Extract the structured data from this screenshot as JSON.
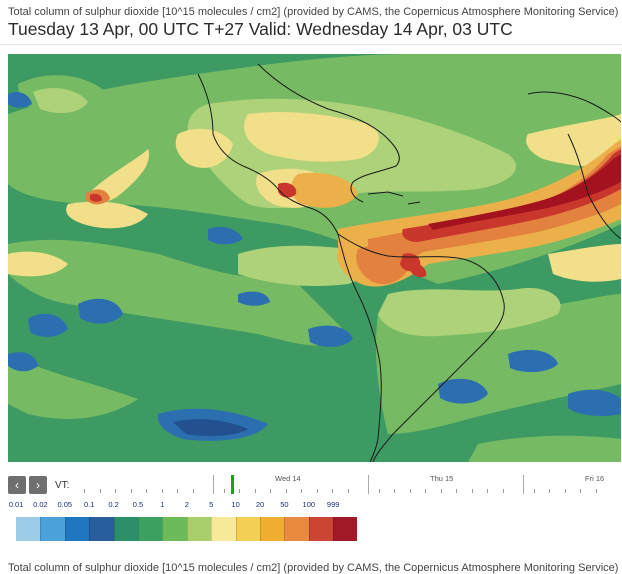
{
  "header": {
    "title": "Total column of sulphur dioxide [10^15 molecules / cm2] (provided by CAMS, the Copernicus Atmosphere Monitoring Service)",
    "valid": "Tuesday 13 Apr, 00 UTC T+27 Valid: Wednesday 14 Apr, 03 UTC"
  },
  "timeline": {
    "prev_icon": "chevron-left-icon",
    "next_icon": "chevron-right-icon",
    "prev_glyph": "‹",
    "next_glyph": "›",
    "vt_label": "VT:",
    "days": [
      "Wed 14",
      "Thu 15",
      "Fri 16"
    ]
  },
  "legend": {
    "labels": [
      "0.01",
      "0.02",
      "0.05",
      "0.1",
      "0.2",
      "0.5",
      "1",
      "2",
      "5",
      "10",
      "20",
      "50",
      "100",
      "999"
    ],
    "colors": [
      "#9ccbe8",
      "#4aa2d9",
      "#1f77bf",
      "#2a5d9e",
      "#2d8f6a",
      "#3ba060",
      "#6cba5a",
      "#a9cf6c",
      "#f6ea9a",
      "#f3cf53",
      "#f0ae30",
      "#e88a3f",
      "#cc4434",
      "#a11826"
    ]
  },
  "map_colors": {
    "ocean": "#3e9a63",
    "light_green": "#76bb63",
    "pale_green": "#aed27a",
    "yellow": "#f1df8a",
    "orange": "#ecb04a",
    "dark_orange": "#e3823f",
    "red": "#c9362c",
    "dark_red": "#a3131f",
    "blue": "#2c6fb0",
    "dark_blue": "#23508f",
    "coast": "#1a1a1a"
  },
  "footer": {
    "text": "Total column of sulphur dioxide [10^15 molecules / cm2] (provided by CAMS, the Copernicus Atmosphere Monitoring Service)"
  }
}
